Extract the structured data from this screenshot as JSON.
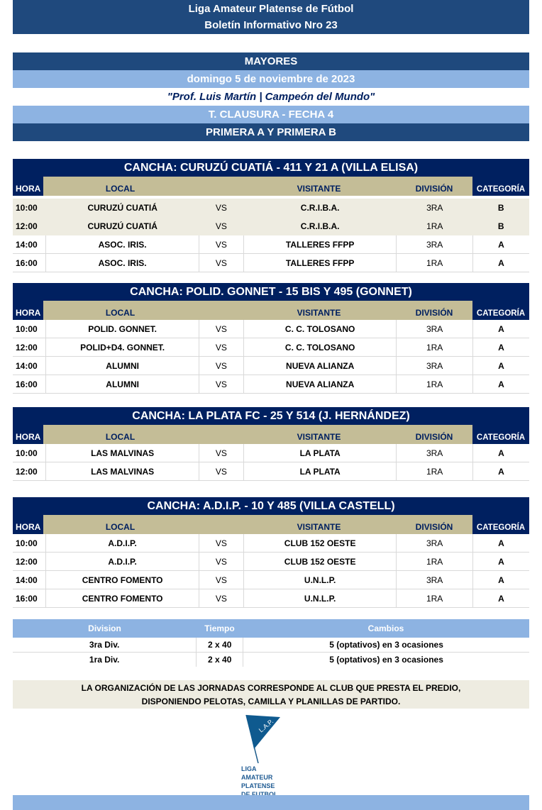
{
  "header": {
    "line1": "Liga Amateur Platense de Fútbol",
    "line2": "Boletín Informativo Nro 23"
  },
  "info": {
    "category": "MAYORES",
    "date": "domingo 5 de noviembre de 2023",
    "dedication": "\"Prof. Luis Martín | Campeón del Mundo\"",
    "tournament": "T. CLAUSURA - FECHA 4",
    "divisions": "PRIMERA A Y PRIMERA B"
  },
  "columns": {
    "hora": "HORA",
    "local": "LOCAL",
    "visitante": "VISITANTE",
    "division": "DIVISIÓN",
    "categoria": "CATEGORÍA"
  },
  "vs": "VS",
  "canchas": [
    {
      "title": "CANCHA: CURUZÚ CUATIÁ - 411 Y 21 A (VILLA ELISA)",
      "matches": [
        {
          "hora": "10:00",
          "local": "CURUZÚ CUATIÁ",
          "visitante": "C.R.I.B.A.",
          "division": "3RA",
          "categoria": "B"
        },
        {
          "hora": "12:00",
          "local": "CURUZÚ CUATIÁ",
          "visitante": "C.R.I.B.A.",
          "division": "1RA",
          "categoria": "B"
        },
        {
          "hora": "14:00",
          "local": "ASOC. IRIS.",
          "visitante": "TALLERES FFPP",
          "division": "3RA",
          "categoria": "A"
        },
        {
          "hora": "16:00",
          "local": "ASOC. IRIS.",
          "visitante": "TALLERES FFPP",
          "division": "1RA",
          "categoria": "A"
        }
      ]
    },
    {
      "title": "CANCHA: POLID. GONNET - 15 BIS Y 495 (GONNET)",
      "matches": [
        {
          "hora": "10:00",
          "local": "POLID. GONNET.",
          "visitante": "C. C. TOLOSANO",
          "division": "3RA",
          "categoria": "A"
        },
        {
          "hora": "12:00",
          "local": "POLID+D4. GONNET.",
          "visitante": "C. C. TOLOSANO",
          "division": "1RA",
          "categoria": "A"
        },
        {
          "hora": "14:00",
          "local": "ALUMNI",
          "visitante": "NUEVA ALIANZA",
          "division": "3RA",
          "categoria": "A"
        },
        {
          "hora": "16:00",
          "local": "ALUMNI",
          "visitante": "NUEVA ALIANZA",
          "division": "1RA",
          "categoria": "A"
        }
      ]
    },
    {
      "title": "CANCHA: LA PLATA FC - 25 Y 514 (J. HERNÁNDEZ)",
      "matches": [
        {
          "hora": "10:00",
          "local": "LAS MALVINAS",
          "visitante": "LA PLATA",
          "division": "3RA",
          "categoria": "A"
        },
        {
          "hora": "12:00",
          "local": "LAS MALVINAS",
          "visitante": "LA PLATA",
          "division": "1RA",
          "categoria": "A"
        }
      ]
    },
    {
      "title": "CANCHA: A.D.I.P. - 10 Y 485 (VILLA CASTELL)",
      "matches": [
        {
          "hora": "10:00",
          "local": "A.D.I.P.",
          "visitante": "CLUB 152 OESTE",
          "division": "3RA",
          "categoria": "A"
        },
        {
          "hora": "12:00",
          "local": "A.D.I.P.",
          "visitante": "CLUB 152 OESTE",
          "division": "1RA",
          "categoria": "A"
        },
        {
          "hora": "14:00",
          "local": "CENTRO FOMENTO",
          "visitante": "U.N.L.P.",
          "division": "3RA",
          "categoria": "A"
        },
        {
          "hora": "16:00",
          "local": "CENTRO FOMENTO",
          "visitante": "U.N.L.P.",
          "division": "1RA",
          "categoria": "A"
        }
      ]
    }
  ],
  "rules": {
    "headers": [
      "Division",
      "Tiempo",
      "Cambios"
    ],
    "rows": [
      [
        "3ra Div.",
        "2 x 40",
        "5 (optativos) en 3 ocasiones"
      ],
      [
        "1ra Div.",
        "2 x 40",
        "5 (optativos) en 3 ocasiones"
      ]
    ]
  },
  "notice": {
    "line1": "LA ORGANIZACIÓN DE LAS JORNADAS CORRESPONDE AL CLUB QUE PRESTA EL PREDIO,",
    "line2": "DISPONIENDO PELOTAS, CAMILLA Y PLANILLAS DE PARTIDO."
  },
  "logo": {
    "flag": "L.A.P.",
    "text": [
      "LIGA",
      "AMATEUR",
      "PLATENSE",
      "DE FUTBOL"
    ]
  }
}
